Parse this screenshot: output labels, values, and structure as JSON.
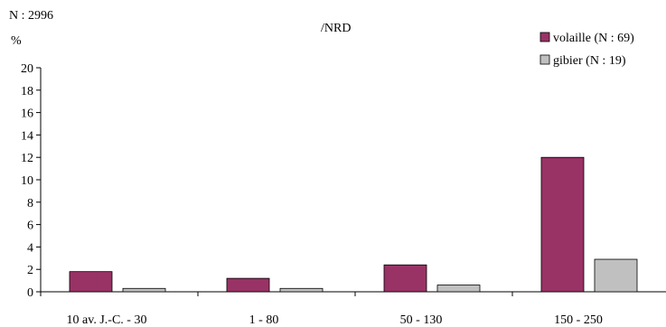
{
  "header": {
    "n_total": "N : 2996",
    "unit": "%",
    "measure": "/NRD"
  },
  "chart_data": {
    "type": "bar",
    "categories": [
      "10 av. J.-C. - 30",
      "1 - 80",
      "50 - 130",
      "150 - 250"
    ],
    "series": [
      {
        "name": "volaille (N : 69)",
        "values": [
          1.8,
          1.2,
          2.4,
          12.0
        ],
        "color": "#993366"
      },
      {
        "name": "gibier (N : 19)",
        "values": [
          0.3,
          0.3,
          0.6,
          2.9
        ],
        "color": "#c0c0c0"
      }
    ],
    "yticks": [
      0,
      2,
      4,
      6,
      8,
      10,
      12,
      14,
      16,
      18,
      20
    ],
    "ylim": [
      0,
      20
    ],
    "grid": false,
    "legend_position": "top-right"
  }
}
